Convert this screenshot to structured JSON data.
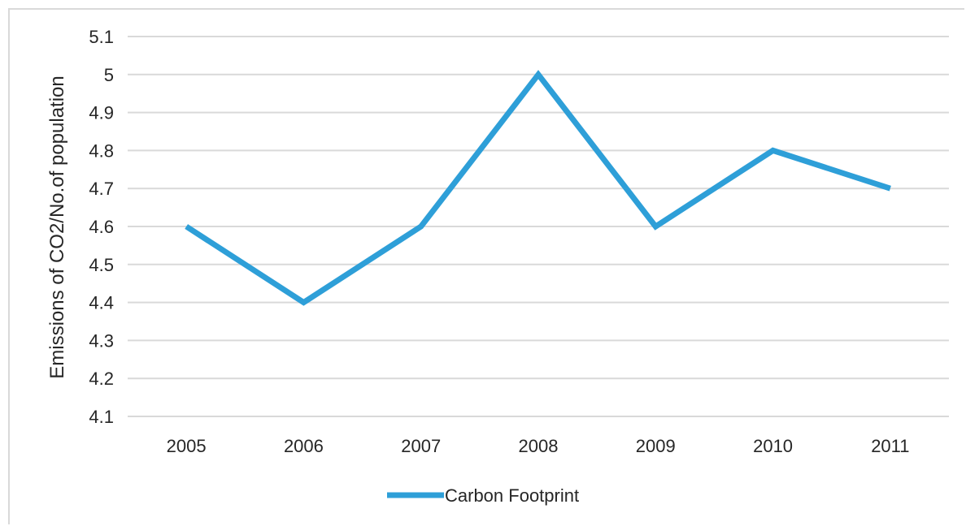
{
  "chart_data": {
    "type": "line",
    "title": "",
    "xlabel": "",
    "ylabel": "Emissions of CO2/No.of population",
    "categories": [
      "2005",
      "2006",
      "2007",
      "2008",
      "2009",
      "2010",
      "2011"
    ],
    "series": [
      {
        "name": "Carbon Footprint",
        "values": [
          4.6,
          4.4,
          4.6,
          5.0,
          4.6,
          4.8,
          4.7
        ],
        "color": "#2e9fd8"
      }
    ],
    "ylim": [
      4.1,
      5.1
    ],
    "yticks": [
      "4.1",
      "4.2",
      "4.3",
      "4.4",
      "4.5",
      "4.6",
      "4.7",
      "4.8",
      "4.9",
      "5",
      "5.1"
    ],
    "grid": true,
    "legend_position": "bottom"
  }
}
